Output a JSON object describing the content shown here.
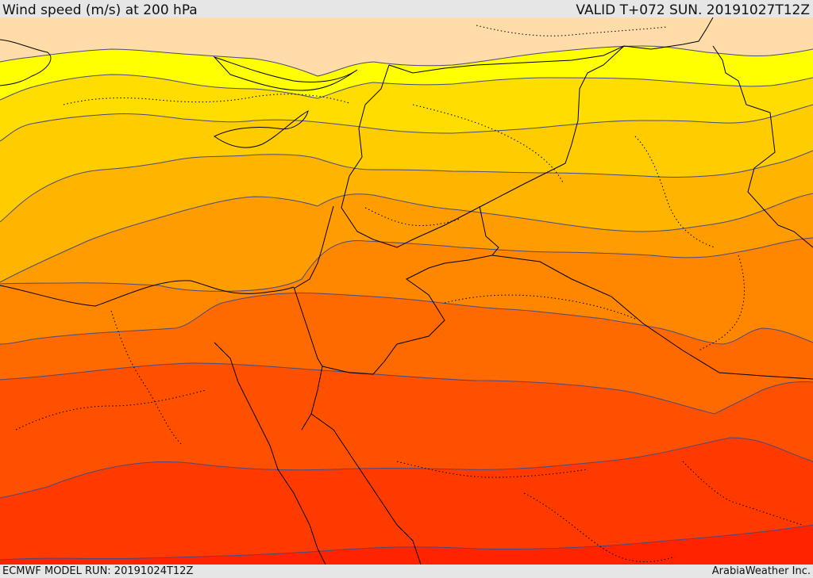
{
  "header": {
    "title": "Wind speed (m/s) at 200 hPa",
    "valid": "VALID T+072 SUN. 20191027T12Z"
  },
  "footer": {
    "model_run": "ECMWF MODEL RUN: 20191024T12Z",
    "credit": "ArabiaWeather Inc."
  },
  "map": {
    "field": "wind speed at 200 hPa",
    "band_colors": [
      "#ffdca8",
      "#ffff00",
      "#ffdd00",
      "#ffcc00",
      "#ffb400",
      "#ff9d00",
      "#ff8700",
      "#ff6a00",
      "#ff5000",
      "#ff3a00",
      "#ff2300"
    ],
    "land_color": "#ffdca8",
    "contour_color": "#4a4a7a",
    "border_color": "#000000"
  }
}
